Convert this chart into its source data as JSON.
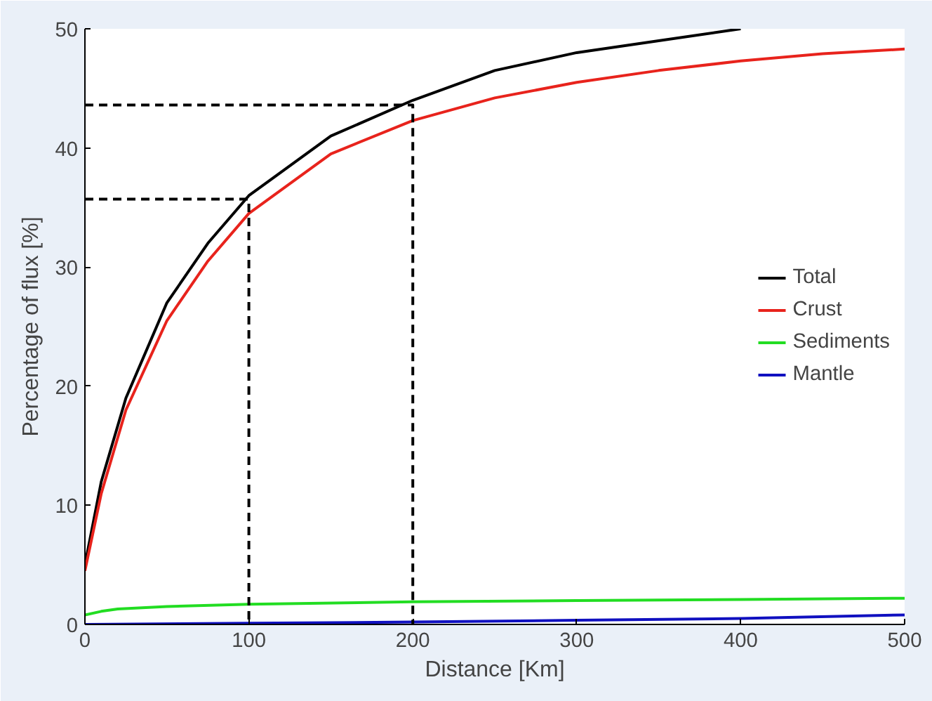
{
  "chart_data": {
    "type": "line",
    "xlabel": "Distance [Km]",
    "ylabel": "Percentage of flux [%]",
    "xlim": [
      0,
      500
    ],
    "ylim": [
      0,
      50
    ],
    "xticks": [
      0,
      100,
      200,
      300,
      400,
      500
    ],
    "yticks": [
      0,
      10,
      20,
      30,
      40,
      50
    ],
    "grid": false,
    "legend": "right",
    "marker": "none",
    "line_style": "solid",
    "series": [
      {
        "name": "Total",
        "color": "#000000",
        "x": [
          0,
          10,
          25,
          50,
          75,
          100,
          150,
          200,
          250,
          300,
          350,
          400
        ],
        "values": [
          5,
          12,
          19,
          27,
          32,
          36,
          41,
          44,
          46.5,
          48,
          49,
          50
        ]
      },
      {
        "name": "Crust",
        "color": "#e8231c",
        "x": [
          0,
          10,
          25,
          50,
          75,
          100,
          150,
          200,
          250,
          300,
          350,
          400,
          450,
          500
        ],
        "values": [
          4.5,
          11,
          18,
          25.5,
          30.5,
          34.5,
          39.5,
          42.3,
          44.2,
          45.5,
          46.5,
          47.3,
          47.9,
          48.3
        ]
      },
      {
        "name": "Sediments",
        "color": "#22dd22",
        "x": [
          0,
          10,
          20,
          50,
          100,
          200,
          300,
          400,
          500
        ],
        "values": [
          0.8,
          1.1,
          1.3,
          1.5,
          1.7,
          1.9,
          2.0,
          2.1,
          2.2
        ]
      },
      {
        "name": "Mantle",
        "color": "#1010c0",
        "x": [
          0,
          100,
          200,
          300,
          400,
          500
        ],
        "values": [
          0,
          0.1,
          0.2,
          0.35,
          0.5,
          0.8
        ]
      },
      {
        "type": "line",
        "color": "#000000",
        "line_style": "dashed",
        "x": [
          0,
          100,
          100
        ],
        "values": [
          35.7,
          35.7,
          0
        ]
      },
      {
        "type": "line",
        "color": "#000000",
        "line_style": "dashed",
        "x": [
          0,
          200,
          200
        ],
        "values": [
          43.6,
          43.6,
          0
        ]
      }
    ]
  }
}
